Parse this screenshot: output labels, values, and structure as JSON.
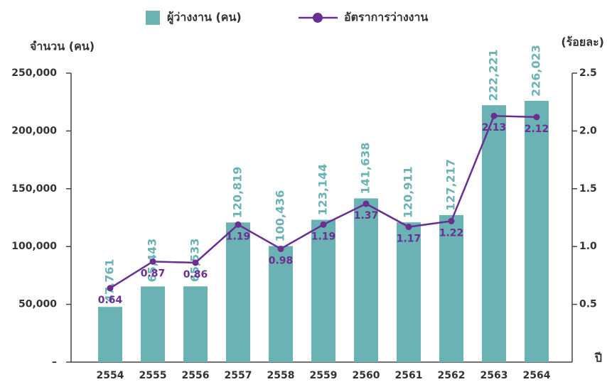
{
  "chart_data": {
    "type": "bar",
    "categories": [
      "2554",
      "2555",
      "2556",
      "2557",
      "2558",
      "2559",
      "2560",
      "2561",
      "2562",
      "2563",
      "2564"
    ],
    "series": [
      {
        "name": "ผู้ว่างงาน (คน)",
        "color": "#6ab2b4",
        "axis": "y",
        "values": [
          47761,
          65443,
          65533,
          120819,
          100436,
          123144,
          141638,
          120911,
          127217,
          222221,
          226023
        ],
        "value_labels": [
          "47,761",
          "65,443",
          "65,533",
          "120,819",
          "100,436",
          "123,144",
          "141,638",
          "120,911",
          "127,217",
          "222,221",
          "226,023"
        ]
      },
      {
        "name": "อัตราการว่างงาน",
        "color": "#6a2f91",
        "axis": "y2",
        "type": "line",
        "values": [
          0.64,
          0.87,
          0.86,
          1.19,
          0.98,
          1.19,
          1.37,
          1.17,
          1.22,
          2.13,
          2.12
        ]
      }
    ],
    "y_label": "จำนวน (คน)",
    "y2_label": "(ร้อยละ)",
    "x_label": "ปี",
    "ylim": [
      0,
      250000
    ],
    "yticks": [
      {
        "value": 0,
        "label": "–"
      },
      {
        "value": 50000,
        "label": "50,000"
      },
      {
        "value": 100000,
        "label": "100,000"
      },
      {
        "value": 150000,
        "label": "150,000"
      },
      {
        "value": 200000,
        "label": "200,000"
      },
      {
        "value": 250000,
        "label": "250,000"
      }
    ],
    "y2lim": [
      0,
      2.5
    ],
    "y2ticks": [
      0.5,
      {
        "value": 1,
        "label": "1.0"
      },
      1.5,
      {
        "value": 2,
        "label": "2.0"
      },
      2.5
    ]
  }
}
